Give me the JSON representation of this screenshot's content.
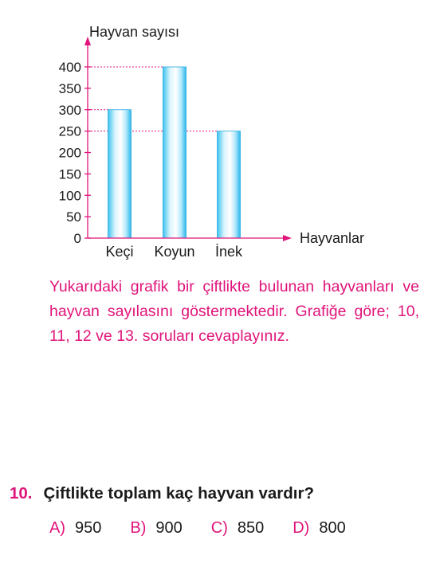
{
  "chart_data": {
    "type": "bar",
    "categories": [
      "Keçi",
      "Koyun",
      "İnek"
    ],
    "values": [
      300,
      400,
      250
    ],
    "ylabel": "Hayvan sayısı",
    "xlabel": "Hayvanlar",
    "yticks": [
      0,
      50,
      100,
      150,
      200,
      250,
      300,
      350,
      400
    ],
    "ylim": [
      0,
      400
    ],
    "dashed_reference_lines": [
      400,
      300,
      250
    ],
    "grid": false,
    "bar_color": "#3fc6f0"
  },
  "description": "Yukarıdaki grafik bir çiftlikte bulunan hayvanları ve hayvan sayılasını göstermektedir. Grafiğe göre; 10, 11, 12 ve 13. soruları cevaplayınız.",
  "question": {
    "number": "10.",
    "text": "Çiftlikte toplam kaç hayvan vardır?",
    "options": [
      {
        "letter": "A)",
        "value": "950"
      },
      {
        "letter": "B)",
        "value": "900"
      },
      {
        "letter": "C)",
        "value": "850"
      },
      {
        "letter": "D)",
        "value": "800"
      }
    ]
  },
  "colors": {
    "accent": "#e0147a",
    "axis": "#e0147a",
    "bar": "#3fc6f0"
  }
}
